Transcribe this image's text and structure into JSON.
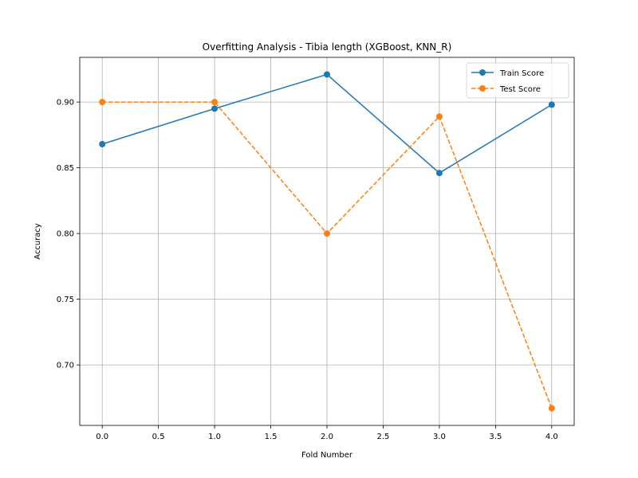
{
  "chart_data": {
    "type": "line",
    "title": "Overfitting Analysis - Tibia length (XGBoost, KNN_R)",
    "xlabel": "Fold Number",
    "ylabel": "Accuracy",
    "xlim": [
      -0.2,
      4.2
    ],
    "ylim": [
      0.654,
      0.934
    ],
    "xticks": [
      "0.0",
      "0.5",
      "1.0",
      "1.5",
      "2.0",
      "2.5",
      "3.0",
      "3.5",
      "4.0"
    ],
    "yticks": [
      "0.70",
      "0.75",
      "0.80",
      "0.85",
      "0.90"
    ],
    "grid": true,
    "legend_position": "top-right",
    "x": [
      0,
      1,
      2,
      3,
      4
    ],
    "series": [
      {
        "name": "Train Score",
        "values": [
          0.868,
          0.895,
          0.921,
          0.846,
          0.898
        ],
        "color": "#1f77b4",
        "style": "solid",
        "marker": "circle"
      },
      {
        "name": "Test Score",
        "values": [
          0.9,
          0.9,
          0.8,
          0.889,
          0.667
        ],
        "color": "#ff7f0e",
        "style": "dashed",
        "marker": "circle"
      }
    ]
  }
}
